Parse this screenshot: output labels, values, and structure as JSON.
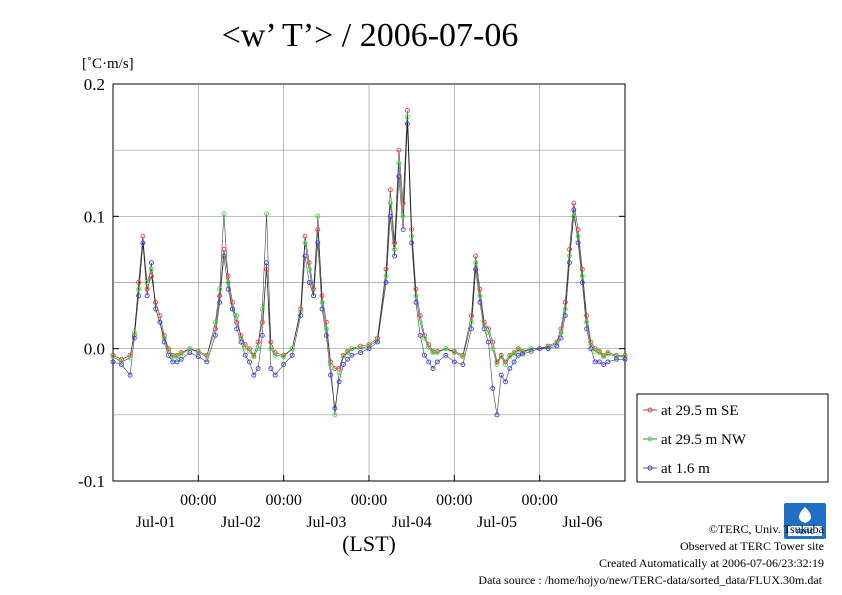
{
  "title": "<w’ T’> / 2006-07-06",
  "chart_data": {
    "type": "line",
    "title": "<w’ T’> / 2006-07-06",
    "ylabel": "[˚C·m/s]",
    "xlabel": "(LST)",
    "ylim": [
      -0.1,
      0.2
    ],
    "yticks": [
      {
        "value": 0.2,
        "label": "0.2"
      },
      {
        "value": 0.1,
        "label": "0.1"
      },
      {
        "value": 0.0,
        "label": "0.0"
      },
      {
        "value": -0.1,
        "label": "-0.1"
      }
    ],
    "xlim": [
      0,
      6
    ],
    "xticks": [
      {
        "value": 1,
        "label": "00:00"
      },
      {
        "value": 2,
        "label": "00:00"
      },
      {
        "value": 3,
        "label": "00:00"
      },
      {
        "value": 4,
        "label": "00:00"
      },
      {
        "value": 5,
        "label": "00:00"
      }
    ],
    "xdays": [
      {
        "value": 0.5,
        "label": "Jul-01"
      },
      {
        "value": 1.5,
        "label": "Jul-02"
      },
      {
        "value": 2.5,
        "label": "Jul-03"
      },
      {
        "value": 3.5,
        "label": "Jul-04"
      },
      {
        "value": 4.5,
        "label": "Jul-05"
      },
      {
        "value": 5.5,
        "label": "Jul-06"
      }
    ],
    "grid": true,
    "legend_position": "right, outside",
    "series": [
      {
        "name": "at 29.5 m SE",
        "color": "#ff3b3b"
      },
      {
        "name": "at 29.5 m NW",
        "color": "#33ee33"
      },
      {
        "name": "at 1.6 m",
        "color": "#3a3aff"
      }
    ],
    "x": [
      0.0,
      0.1,
      0.2,
      0.25,
      0.3,
      0.35,
      0.4,
      0.45,
      0.5,
      0.55,
      0.6,
      0.65,
      0.7,
      0.75,
      0.8,
      0.9,
      1.0,
      1.1,
      1.2,
      1.25,
      1.3,
      1.35,
      1.4,
      1.45,
      1.5,
      1.55,
      1.6,
      1.65,
      1.7,
      1.75,
      1.8,
      1.85,
      1.9,
      2.0,
      2.1,
      2.2,
      2.25,
      2.3,
      2.35,
      2.4,
      2.45,
      2.5,
      2.55,
      2.6,
      2.65,
      2.7,
      2.75,
      2.8,
      2.9,
      3.0,
      3.1,
      3.2,
      3.25,
      3.3,
      3.35,
      3.4,
      3.45,
      3.5,
      3.55,
      3.6,
      3.65,
      3.7,
      3.75,
      3.8,
      3.9,
      4.0,
      4.1,
      4.2,
      4.25,
      4.3,
      4.35,
      4.4,
      4.45,
      4.5,
      4.55,
      4.6,
      4.65,
      4.7,
      4.75,
      4.8,
      4.9,
      5.0,
      5.1,
      5.2,
      5.25,
      5.3,
      5.35,
      5.4,
      5.45,
      5.5,
      5.55,
      5.6,
      5.65,
      5.7,
      5.75,
      5.8,
      5.9,
      6.0
    ],
    "values": [
      [
        -0.005,
        -0.008,
        -0.005,
        0.01,
        0.05,
        0.085,
        0.045,
        0.055,
        0.035,
        0.025,
        0.01,
        0.0,
        -0.005,
        -0.005,
        -0.003,
        0.0,
        -0.002,
        -0.005,
        0.015,
        0.04,
        0.075,
        0.055,
        0.035,
        0.02,
        0.01,
        0.003,
        0.0,
        -0.005,
        0.005,
        0.02,
        0.06,
        0.005,
        -0.003,
        -0.005,
        0.0,
        0.03,
        0.085,
        0.065,
        0.045,
        0.09,
        0.04,
        0.02,
        -0.01,
        -0.015,
        -0.015,
        -0.005,
        -0.002,
        0.0,
        0.002,
        0.003,
        0.008,
        0.06,
        0.12,
        0.08,
        0.15,
        0.11,
        0.18,
        0.09,
        0.045,
        0.025,
        0.01,
        0.003,
        -0.002,
        -0.002,
        0.0,
        -0.002,
        -0.005,
        0.025,
        0.07,
        0.045,
        0.02,
        0.015,
        0.005,
        -0.01,
        -0.005,
        -0.01,
        -0.005,
        -0.003,
        0.0,
        -0.002,
        0.0,
        0.0,
        0.002,
        0.005,
        0.015,
        0.035,
        0.075,
        0.11,
        0.09,
        0.06,
        0.025,
        0.005,
        0.0,
        -0.002,
        -0.005,
        -0.003,
        -0.005,
        -0.005
      ],
      [
        -0.006,
        -0.01,
        -0.007,
        0.012,
        0.045,
        0.08,
        0.05,
        0.06,
        0.03,
        0.02,
        0.008,
        -0.002,
        -0.006,
        -0.006,
        -0.004,
        0.0,
        -0.003,
        -0.006,
        0.02,
        0.045,
        0.102,
        0.05,
        0.03,
        0.025,
        0.008,
        0.001,
        -0.002,
        -0.006,
        0.0,
        0.03,
        0.102,
        0.0,
        -0.005,
        -0.006,
        0.0,
        0.028,
        0.08,
        0.06,
        0.04,
        0.1,
        0.035,
        0.015,
        -0.012,
        -0.05,
        -0.018,
        -0.006,
        -0.003,
        0.0,
        0.0,
        0.002,
        0.006,
        0.055,
        0.11,
        0.075,
        0.14,
        0.1,
        0.175,
        0.085,
        0.04,
        0.02,
        0.008,
        0.001,
        -0.003,
        -0.003,
        0.0,
        -0.003,
        -0.006,
        0.02,
        0.065,
        0.04,
        0.018,
        0.012,
        0.0,
        -0.012,
        -0.006,
        -0.012,
        -0.006,
        -0.004,
        -0.001,
        -0.003,
        0.0,
        0.0,
        0.001,
        0.004,
        0.012,
        0.03,
        0.07,
        0.1,
        0.085,
        0.055,
        0.02,
        0.003,
        -0.002,
        -0.003,
        -0.006,
        -0.004,
        -0.006,
        -0.006
      ],
      [
        -0.01,
        -0.012,
        -0.02,
        0.008,
        0.04,
        0.08,
        0.04,
        0.065,
        0.03,
        0.02,
        0.005,
        -0.005,
        -0.01,
        -0.01,
        -0.008,
        -0.003,
        -0.006,
        -0.01,
        0.01,
        0.035,
        0.07,
        0.045,
        0.03,
        0.015,
        0.005,
        -0.005,
        -0.01,
        -0.02,
        -0.015,
        0.01,
        0.065,
        -0.015,
        -0.02,
        -0.012,
        -0.005,
        0.025,
        0.07,
        0.05,
        0.04,
        0.08,
        0.03,
        0.01,
        -0.02,
        -0.045,
        -0.025,
        -0.012,
        -0.008,
        -0.005,
        -0.003,
        0.0,
        0.005,
        0.05,
        0.1,
        0.07,
        0.13,
        0.09,
        0.17,
        0.08,
        0.035,
        0.01,
        -0.005,
        -0.01,
        -0.015,
        -0.01,
        -0.005,
        -0.01,
        -0.012,
        0.015,
        0.06,
        0.035,
        0.015,
        0.005,
        -0.03,
        -0.05,
        -0.02,
        -0.025,
        -0.015,
        -0.01,
        -0.005,
        -0.004,
        -0.002,
        0.0,
        0.0,
        0.002,
        0.008,
        0.025,
        0.065,
        0.105,
        0.08,
        0.05,
        0.015,
        0.0,
        -0.01,
        -0.01,
        -0.012,
        -0.01,
        -0.008,
        -0.008
      ]
    ]
  },
  "credits": {
    "copyright": "©TERC, Univ. Tsukuba",
    "observed": "Observed at TERC Tower site",
    "created": "Created Automatically at 2006-07-06/23:32:19",
    "source": "Data source : /home/hojyo/new/TERC-data/sorted_data/FLUX.30m.dat"
  },
  "logo": {
    "text": "TERC",
    "color": "#1f6fc4"
  }
}
